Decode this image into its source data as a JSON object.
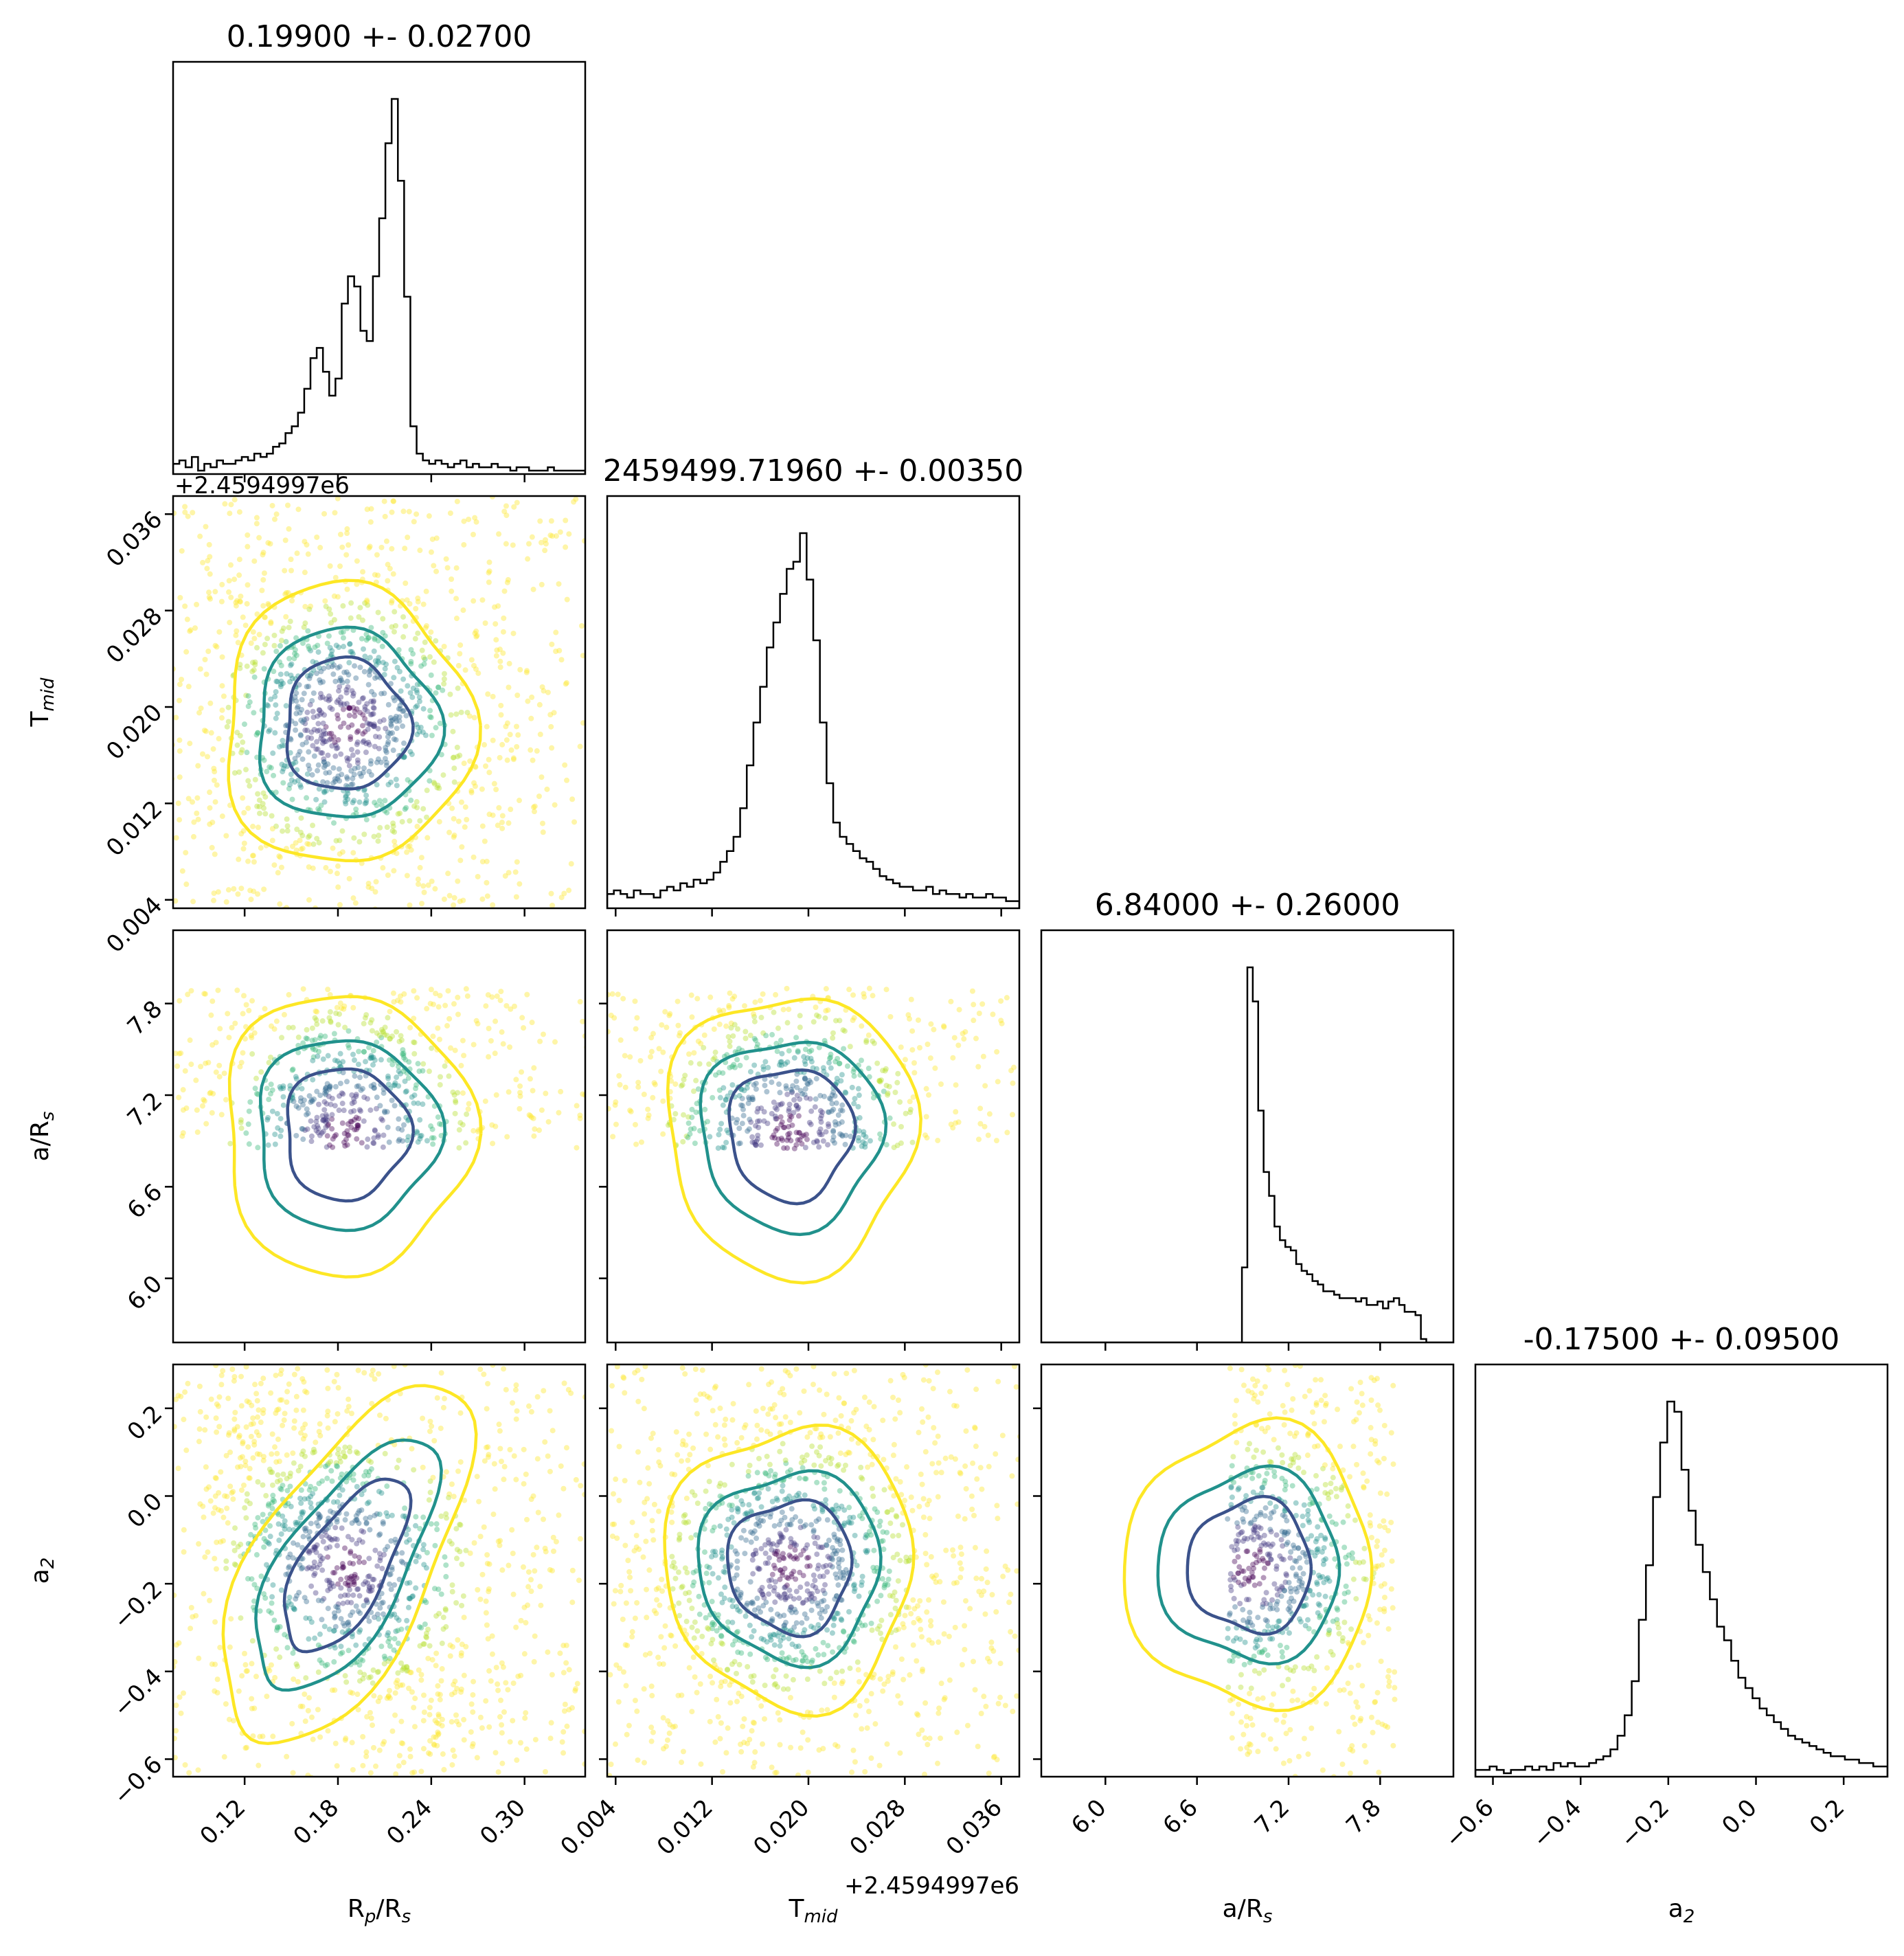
{
  "chart_data": {
    "type": "corner",
    "parameters": [
      {
        "key": "rp",
        "label_base": "R",
        "label_sub": "p",
        "label_tail": "/R",
        "label_tail_sub": "s",
        "title": "0.19900 +- 0.02700",
        "range": [
          0.074,
          0.339
        ],
        "ticks": [
          0.12,
          0.18,
          0.24,
          0.3
        ],
        "tick_labels": [
          "0.12",
          "0.18",
          "0.24",
          "0.30"
        ]
      },
      {
        "key": "tmid",
        "label_base": "T",
        "label_sub": "mid",
        "label_tail": "",
        "label_tail_sub": "",
        "title": "2459499.71960 +- 0.00350",
        "offset_text": "+2.4594997e6",
        "range": [
          0.0033,
          0.0375
        ],
        "ticks": [
          0.004,
          0.012,
          0.02,
          0.028,
          0.036
        ],
        "tick_labels": [
          "0.004",
          "0.012",
          "0.020",
          "0.028",
          "0.036"
        ]
      },
      {
        "key": "ars",
        "label_base": "a/R",
        "label_sub": "s",
        "label_tail": "",
        "label_tail_sub": "",
        "title": "6.84000 +- 0.26000",
        "range": [
          5.58,
          8.28
        ],
        "ticks": [
          6.0,
          6.6,
          7.2,
          7.8
        ],
        "tick_labels": [
          "6.0",
          "6.6",
          "7.2",
          "7.8"
        ]
      },
      {
        "key": "a2",
        "label_base": "a",
        "label_sub": "2",
        "label_tail": "",
        "label_tail_sub": "",
        "title": "-0.17500 +- 0.09500",
        "range": [
          -0.64,
          0.3
        ],
        "ticks": [
          -0.6,
          -0.4,
          -0.2,
          0.0,
          0.2
        ],
        "tick_labels": [
          "−0.6",
          "−0.4",
          "−0.2",
          "0.0",
          "0.2"
        ]
      }
    ],
    "histograms": [
      {
        "param": "rp",
        "peak": 0.197,
        "heights": [
          3,
          4,
          2,
          5,
          1,
          3,
          2,
          4,
          3,
          3,
          4,
          5,
          4,
          6,
          5,
          6,
          8,
          9,
          12,
          14,
          18,
          25,
          34,
          37,
          30,
          23,
          28,
          50,
          58,
          55,
          42,
          39,
          58,
          75,
          97,
          110,
          86,
          52,
          14,
          6,
          4,
          3,
          4,
          3,
          2,
          3,
          4,
          2,
          3,
          2,
          2,
          3,
          2,
          2,
          1,
          2,
          2,
          1,
          1,
          1,
          2,
          1,
          1,
          1,
          1,
          1
        ]
      },
      {
        "param": "tmid",
        "peak": 0.0192,
        "heights": [
          4,
          5,
          4,
          3,
          5,
          4,
          4,
          3,
          5,
          6,
          5,
          7,
          6,
          8,
          7,
          8,
          10,
          13,
          16,
          20,
          28,
          40,
          52,
          62,
          73,
          80,
          88,
          95,
          97,
          105,
          92,
          75,
          52,
          35,
          24,
          20,
          18,
          16,
          14,
          13,
          11,
          9,
          8,
          7,
          6,
          6,
          5,
          5,
          6,
          4,
          5,
          4,
          4,
          3,
          4,
          3,
          3,
          4,
          3,
          3,
          2,
          2
        ]
      },
      {
        "param": "ars",
        "peak": 6.885,
        "heights": [
          0,
          0,
          0,
          0,
          0,
          0,
          0,
          0,
          0,
          0,
          0,
          0,
          0,
          0,
          0,
          0,
          0,
          0,
          0,
          0,
          0,
          0,
          0,
          0,
          0,
          0,
          0,
          0,
          0,
          0,
          0,
          0,
          0,
          0,
          0,
          0,
          0,
          22,
          110,
          100,
          68,
          50,
          43,
          34,
          30,
          28,
          27,
          23,
          21,
          20,
          18,
          17,
          15,
          15,
          14,
          13,
          13,
          13,
          12,
          13,
          11,
          11,
          12,
          10,
          12,
          13,
          11,
          9,
          9,
          8,
          1,
          0,
          0,
          0,
          0,
          0
        ]
      },
      {
        "param": "a2",
        "peak": -0.158,
        "heights": [
          2,
          2,
          3,
          2,
          1,
          2,
          2,
          3,
          2,
          3,
          2,
          4,
          3,
          4,
          3,
          3,
          4,
          5,
          6,
          8,
          12,
          18,
          28,
          46,
          62,
          82,
          98,
          110,
          107,
          90,
          78,
          68,
          60,
          52,
          44,
          40,
          34,
          29,
          26,
          23,
          20,
          18,
          16,
          14,
          12,
          11,
          10,
          9,
          8,
          7,
          6,
          6,
          5,
          5,
          4,
          4,
          3,
          3
        ]
      }
    ],
    "sample_counts": {
      "points_per_panel": 1400
    },
    "colors": {
      "axes": "#000000",
      "contour_inner": "#3b528b",
      "contour_mid": "#21918c",
      "contour_outer": "#fde725",
      "points": [
        "#fde725",
        "#b5de2b",
        "#35b779",
        "#21918c",
        "#31688e",
        "#443983",
        "#440154"
      ]
    }
  }
}
